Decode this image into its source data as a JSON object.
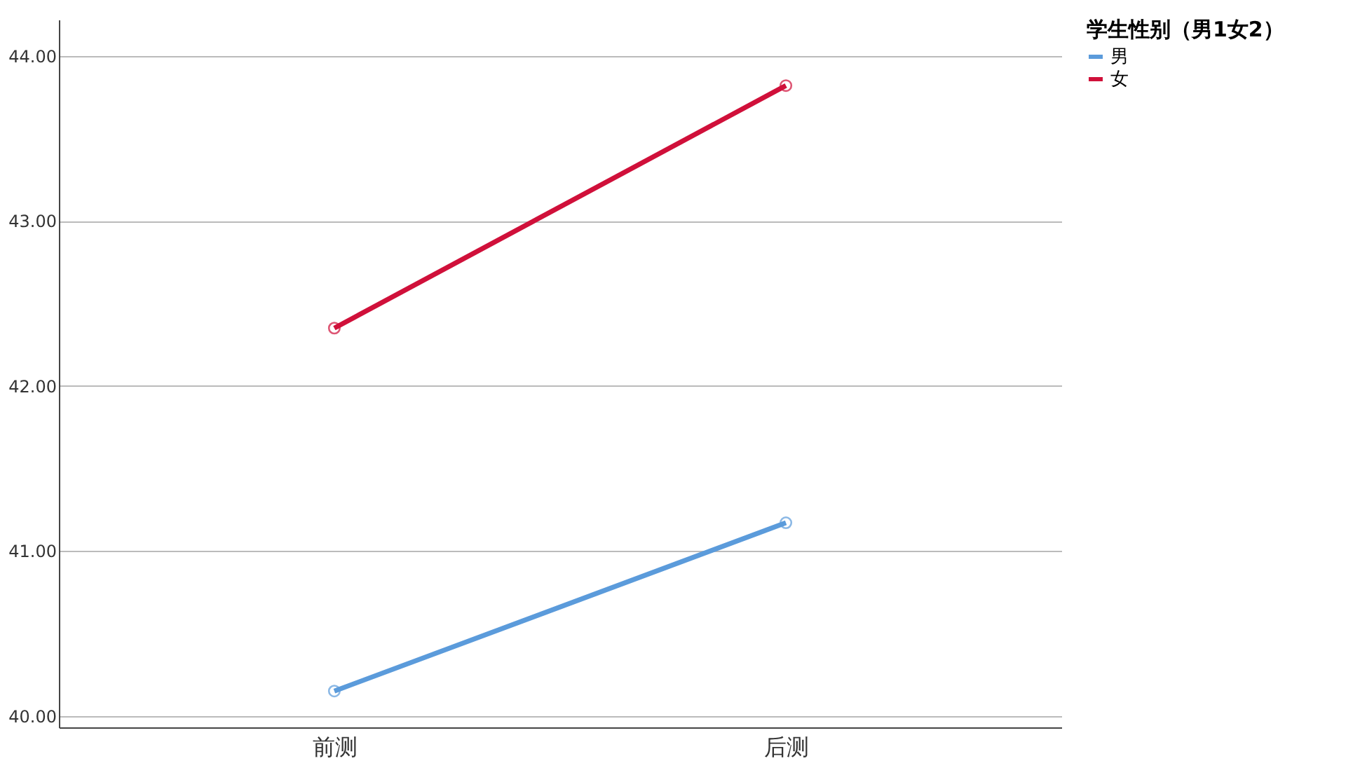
{
  "chart_data": {
    "type": "line",
    "legend_title": "学生性别（男1女2）",
    "categories": [
      "前测",
      "后测"
    ],
    "series": [
      {
        "name": "男",
        "color": "#5b9bdb",
        "values": [
          40.15,
          41.17
        ]
      },
      {
        "name": "女",
        "color": "#d0103a",
        "values": [
          42.35,
          43.82
        ]
      }
    ],
    "ylim": [
      39.93,
      44.22
    ],
    "yticks": [
      {
        "value": 40,
        "label": "40.00"
      },
      {
        "value": 41,
        "label": "41.00"
      },
      {
        "value": 42,
        "label": "42.00"
      },
      {
        "value": 43,
        "label": "43.00"
      },
      {
        "value": 44,
        "label": "44.00"
      }
    ],
    "grid": "y",
    "legend": "top right",
    "marker": "circle",
    "line_style": "solid"
  }
}
